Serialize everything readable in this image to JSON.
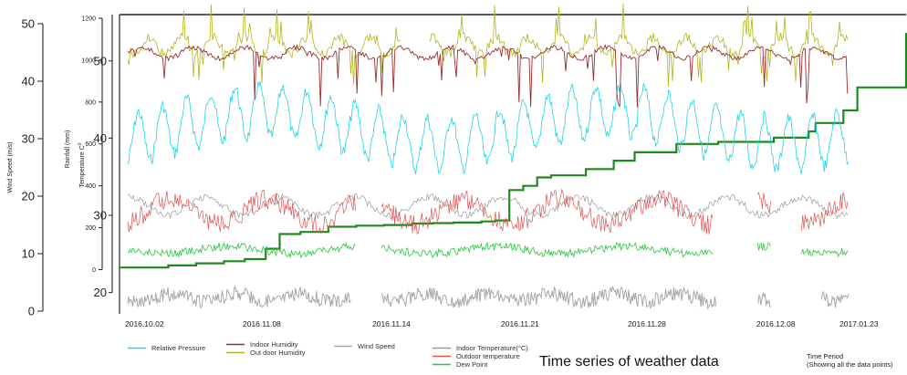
{
  "caption": "Time series of weather data",
  "time_period_label": "Time Period",
  "time_period_note": "(Showing all the data points)",
  "chart_data": {
    "type": "line",
    "x_dates": [
      "2016-10-02",
      "2017-01-23"
    ],
    "x_tick_labels": [
      "2016.10.02",
      "2016.11.08",
      "2016.11.14",
      "2016.11.21",
      "2016.11.28",
      "2016.12.08",
      "2017.01.23"
    ],
    "axes": {
      "wind_speed": {
        "label": "Wind Speed (m/s)",
        "range": [
          0,
          50
        ],
        "ticks": [
          0,
          10,
          20,
          30,
          40,
          50
        ]
      },
      "rainfall": {
        "label": "Rainfall (mm)",
        "range": [
          -50,
          1200
        ],
        "ticks": [
          0,
          200,
          400,
          600,
          800,
          1000,
          1200
        ]
      },
      "temperature": {
        "label": "Temperature C",
        "label_sup": "0",
        "range": [
          17,
          56
        ],
        "ticks": [
          20,
          30,
          40,
          50
        ]
      }
    },
    "colors": {
      "relative_pressure": "#22d3e6",
      "indoor_humidity": "#9b2d2d",
      "outdoor_humidity": "#b5b51a",
      "wind_speed": "#a8a8a8",
      "indoor_temperature": "#9a9a9a",
      "outdoor_temperature": "#e0524f",
      "dew_point": "#22c93a",
      "rainfall": "#1e8a1e"
    },
    "legend": [
      {
        "key": "relative_pressure",
        "label": "Relative Pressure"
      },
      {
        "key": "indoor_humidity",
        "label": "Indoor Humidity"
      },
      {
        "key": "outdoor_humidity",
        "label": "Out door Humidity"
      },
      {
        "key": "wind_speed",
        "label": "Wind Speed"
      },
      {
        "key": "indoor_temperature",
        "label": "Indoor Temperature(°C)"
      },
      {
        "key": "outdoor_temperature",
        "label": "Outdoor temperature"
      },
      {
        "key": "dew_point",
        "label": "Dew Point"
      }
    ],
    "series": [
      {
        "key": "rainfall",
        "axis": "rainfall",
        "step": true,
        "x": [
          "2016-10-02",
          "2016-10-09",
          "2016-10-13",
          "2016-10-17",
          "2016-10-20",
          "2016-10-23",
          "2016-10-25",
          "2016-10-28",
          "2016-11-01",
          "2016-11-05",
          "2016-11-09",
          "2016-11-13",
          "2016-11-16",
          "2016-11-19",
          "2016-11-23",
          "2016-11-25",
          "2016-11-27",
          "2016-11-29",
          "2016-12-01",
          "2016-12-03",
          "2016-12-08",
          "2016-12-12",
          "2016-12-15",
          "2016-12-21",
          "2016-12-27",
          "2017-01-04",
          "2017-01-09",
          "2017-01-10",
          "2017-01-14",
          "2017-01-16",
          "2017-01-23"
        ],
        "y": [
          10,
          20,
          30,
          40,
          50,
          100,
          170,
          180,
          205,
          210,
          213,
          220,
          222,
          225,
          230,
          235,
          380,
          400,
          440,
          450,
          480,
          520,
          560,
          600,
          610,
          630,
          660,
          700,
          760,
          870,
          1130
        ]
      }
    ]
  }
}
